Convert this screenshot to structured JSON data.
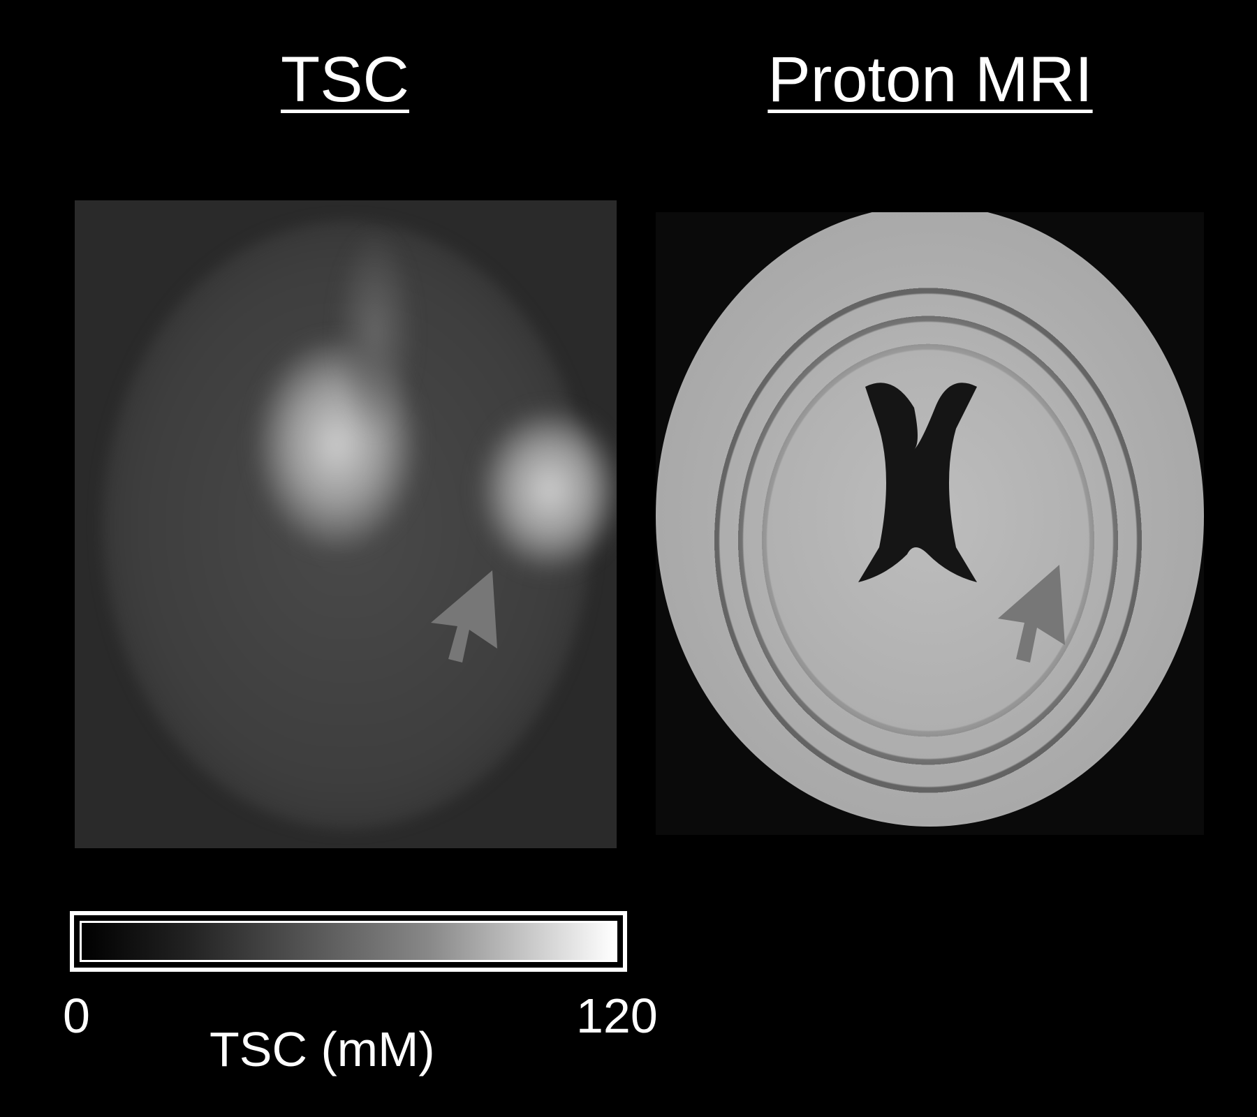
{
  "panels": {
    "left_title": "TSC",
    "right_title": "Proton MRI"
  },
  "colorbar": {
    "min_label": "0",
    "max_label": "120",
    "unit_label": "TSC (mM)",
    "colormap": "grayscale"
  },
  "colors": {
    "background": "#000000",
    "arrow": "#777777"
  }
}
